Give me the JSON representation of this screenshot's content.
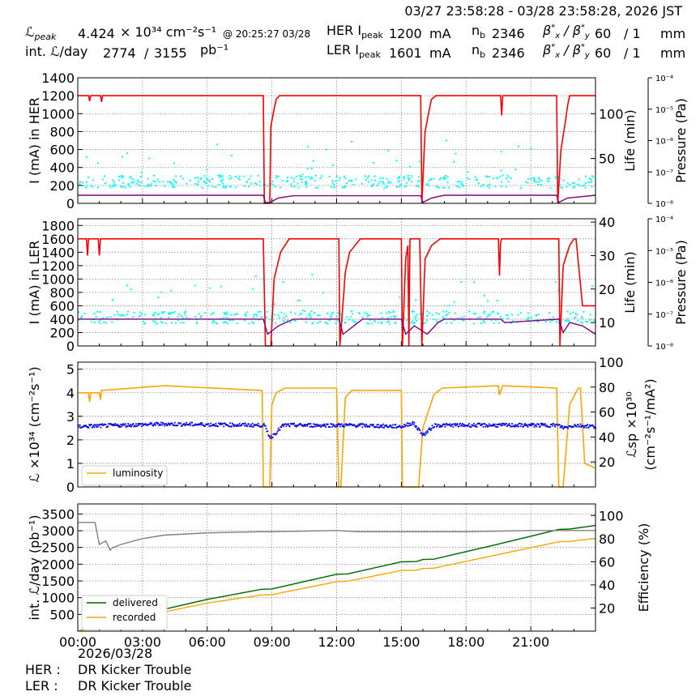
{
  "header": {
    "range": "03/27 23:58:28 - 03/28 23:58:28, 2026 JST",
    "lpeak_label": "ℒpeak",
    "lpeak_value": "4.424",
    "lpeak_unit": "× 10³⁴ cm⁻²s⁻¹",
    "lpeak_time": "@ 20:25:27 03/28",
    "intl_label": "int. ℒ/day",
    "intl_value1": "2774",
    "intl_sep": "/",
    "intl_value2": "3155",
    "intl_unit": "pb⁻¹",
    "her_label": "HER Ipeak",
    "her_value": "1200",
    "her_unit": "mA",
    "ler_label": "LER Ipeak",
    "ler_value": "1601",
    "ler_unit": "mA",
    "nb_label": "nb",
    "her_nb": "2346",
    "ler_nb": "2346",
    "beta_label": "βx* / βy*",
    "her_bx": "60",
    "her_by": "/ 1",
    "ler_bx": "60",
    "ler_by": "/ 1",
    "beta_unit": "mm"
  },
  "footer": {
    "date": "2026/03/28",
    "her_label": "HER :",
    "her_text": "DR Kicker Trouble",
    "ler_label": "LER :",
    "ler_text": "DR Kicker Trouble"
  },
  "colors": {
    "current": "#ff0000",
    "life": "#800080",
    "pressure": "#00ffff",
    "luminosity": "#ffa500",
    "specific": "#0000ff",
    "delivered": "#006400",
    "recorded": "#ffa500",
    "efficiency": "#808080"
  },
  "chart_data": [
    {
      "type": "line",
      "id": "her",
      "ylabel": "I (mA) in HER",
      "y2label": "Life (min)",
      "y3label": "Pressure (Pa)",
      "ylim": [
        0,
        1400
      ],
      "yticks": [
        0,
        200,
        400,
        600,
        800,
        1000,
        1200,
        1400
      ],
      "y2lim": [
        0,
        140
      ],
      "y2ticks": [
        50,
        100
      ],
      "y3ticks": [
        "10⁻⁴",
        "10⁻⁵",
        "10⁻⁶",
        "10⁻⁷",
        "10⁻⁸"
      ],
      "xlim": [
        0,
        24
      ],
      "series": [
        {
          "role": "current",
          "x": [
            0,
            0.5,
            0.55,
            0.6,
            1.05,
            1.1,
            1.15,
            8.6,
            8.65,
            8.9,
            8.95,
            9.1,
            9.2,
            9.35,
            15.9,
            15.95,
            16.1,
            16.3,
            16.4,
            16.6,
            19.6,
            19.65,
            19.7,
            22.2,
            22.25,
            22.4,
            22.6,
            22.7,
            22.8,
            24
          ],
          "y": [
            1200,
            1200,
            1140,
            1200,
            1200,
            1130,
            1200,
            1200,
            0,
            0,
            860,
            1050,
            1160,
            1200,
            1200,
            0,
            800,
            1050,
            1160,
            1200,
            1200,
            980,
            1200,
            1200,
            0,
            600,
            900,
            1080,
            1200,
            1200
          ]
        },
        {
          "role": "life",
          "x": [
            0,
            8.6,
            8.7,
            8.9,
            9.3,
            10,
            15.9,
            16.0,
            16.4,
            17,
            22.2,
            22.3,
            22.7,
            24
          ],
          "y": [
            9,
            9,
            1,
            1,
            6,
            8.5,
            8.5,
            1,
            6,
            9,
            9,
            1,
            6,
            9
          ]
        }
      ]
    },
    {
      "type": "line",
      "id": "ler",
      "ylabel": "I (mA) in LER",
      "y2label": "Life (min)",
      "y3label": "Pressure (Pa)",
      "ylim": [
        0,
        1900
      ],
      "yticks": [
        0,
        200,
        400,
        600,
        800,
        1000,
        1200,
        1400,
        1600,
        1800
      ],
      "y2lim": [
        3,
        41
      ],
      "y2ticks": [
        10,
        20,
        30,
        40
      ],
      "y3ticks": [
        "10⁻⁴",
        "10⁻⁵",
        "10⁻⁶",
        "10⁻⁷",
        "10⁻⁸"
      ],
      "xlim": [
        0,
        24
      ],
      "series": [
        {
          "role": "current",
          "x": [
            0,
            0.4,
            0.45,
            0.5,
            0.95,
            1.0,
            1.05,
            8.6,
            8.7,
            8.95,
            9.1,
            9.4,
            9.8,
            12.1,
            12.15,
            12.4,
            12.6,
            13.1,
            15.0,
            15.05,
            15.2,
            15.3,
            15.35,
            15.4,
            15.85,
            15.95,
            16.1,
            16.4,
            16.8,
            19.5,
            19.55,
            19.6,
            19.65,
            22.3,
            22.35,
            22.5,
            22.8,
            23.0,
            23.1,
            23.4,
            24
          ],
          "y": [
            1600,
            1600,
            1350,
            1600,
            1600,
            1350,
            1600,
            1600,
            0,
            0,
            1000,
            1400,
            1600,
            1600,
            0,
            1100,
            1400,
            1600,
            1600,
            0,
            1300,
            1500,
            0,
            1600,
            1600,
            0,
            1300,
            1500,
            1600,
            1600,
            1050,
            1550,
            1600,
            1600,
            0,
            1200,
            1500,
            1600,
            1600,
            600,
            600
          ]
        },
        {
          "role": "life",
          "x": [
            0,
            8.6,
            8.8,
            9.3,
            10,
            12.1,
            12.3,
            12.8,
            13.2,
            15.0,
            15.2,
            15.6,
            16.2,
            16.7,
            17,
            19.6,
            19.8,
            22.3,
            22.5,
            22.8,
            23.4,
            24
          ],
          "y": [
            11,
            11,
            6.5,
            9,
            11,
            11,
            6.5,
            9,
            11,
            11,
            6.5,
            9,
            6.5,
            10,
            11,
            11,
            10,
            11,
            7,
            10,
            9,
            6.5
          ]
        }
      ]
    },
    {
      "type": "line",
      "id": "lumi",
      "ylabel": "ℒ ×10³⁴ (cm⁻²s⁻¹)",
      "y2label": "ℒsp ×10³⁰ (cm⁻²s⁻¹/mA²)",
      "ylim": [
        0,
        5.3
      ],
      "yticks": [
        0,
        1,
        2,
        3,
        4,
        5
      ],
      "y2lim": [
        0,
        100
      ],
      "y2ticks": [
        20,
        40,
        60,
        80,
        100
      ],
      "xlim": [
        0,
        24
      ],
      "legend": "lower-left",
      "series": [
        {
          "role": "luminosity",
          "name": "luminosity",
          "x": [
            0,
            0.5,
            0.55,
            0.6,
            1.0,
            1.05,
            1.1,
            4.0,
            8.55,
            8.6,
            8.7,
            8.9,
            9.0,
            9.2,
            9.6,
            12.0,
            12.1,
            12.2,
            12.4,
            12.7,
            15.0,
            15.05,
            15.1,
            15.8,
            16.0,
            16.5,
            16.6,
            16.9,
            19.5,
            19.55,
            19.7,
            22.2,
            22.3,
            22.5,
            22.8,
            23.2,
            23.3,
            23.5,
            24
          ],
          "y": [
            4.0,
            4.0,
            3.6,
            4.0,
            4.0,
            3.7,
            4.1,
            4.3,
            4.1,
            0,
            0,
            0,
            3.5,
            4.0,
            4.2,
            4.2,
            0,
            0,
            3.8,
            4.1,
            4.1,
            0,
            0,
            0,
            2.5,
            3.9,
            4.0,
            4.2,
            4.3,
            3.9,
            4.3,
            4.2,
            0,
            0,
            3.5,
            4.2,
            4.2,
            1.0,
            0.8
          ]
        },
        {
          "role": "specific",
          "name": "",
          "x": [
            0,
            4,
            8.6,
            8.9,
            9.5,
            12.1,
            12.6,
            15.0,
            15.5,
            16.0,
            16.5,
            19.5,
            22.2,
            22.5,
            23,
            24
          ],
          "y": [
            49,
            51,
            50,
            40,
            50,
            50,
            50,
            49,
            52,
            42,
            50,
            50,
            50,
            48,
            50,
            49
          ]
        }
      ]
    },
    {
      "type": "line",
      "id": "intlumi",
      "ylabel": "int. ℒ/day (pb⁻¹)",
      "y2label": "Efficiency (%)",
      "ylim": [
        0,
        3800
      ],
      "yticks": [
        500,
        1000,
        1500,
        2000,
        2500,
        3000,
        3500
      ],
      "y2lim": [
        0,
        110
      ],
      "y2ticks": [
        20,
        40,
        60,
        80,
        100
      ],
      "xlim": [
        0,
        24
      ],
      "xticks": [
        "00:00",
        "03:00",
        "06:00",
        "09:00",
        "12:00",
        "15:00",
        "18:00",
        "21:00"
      ],
      "legend": "lower-left",
      "series": [
        {
          "role": "delivered",
          "name": "delivered",
          "x": [
            0,
            2,
            4,
            6,
            8.5,
            9.0,
            12.0,
            12.5,
            15.0,
            15.7,
            16.0,
            16.5,
            19.5,
            22.3,
            22.8,
            24
          ],
          "y": [
            0,
            350,
            650,
            950,
            1250,
            1260,
            1700,
            1710,
            2070,
            2080,
            2140,
            2150,
            2600,
            3040,
            3050,
            3155
          ]
        },
        {
          "role": "recorded",
          "name": "recorded",
          "x": [
            0,
            2,
            4,
            6,
            8.5,
            9.0,
            12.0,
            12.5,
            15.0,
            15.7,
            16.0,
            16.5,
            19.5,
            22.3,
            22.8,
            24
          ],
          "y": [
            0,
            300,
            570,
            840,
            1080,
            1090,
            1480,
            1490,
            1810,
            1820,
            1870,
            1880,
            2290,
            2670,
            2680,
            2774
          ]
        },
        {
          "role": "efficiency",
          "name": "",
          "x": [
            0,
            0.8,
            1.0,
            1.3,
            1.5,
            1.6,
            2.0,
            3.0,
            4.0,
            6.0,
            8.5,
            9.0,
            12.0,
            13.0,
            15.0,
            18.0,
            21.0,
            24
          ],
          "y": [
            94,
            94,
            75,
            78,
            70,
            72,
            75,
            80,
            83,
            85,
            86,
            86,
            87,
            86,
            86,
            86,
            87,
            87
          ]
        }
      ]
    }
  ]
}
